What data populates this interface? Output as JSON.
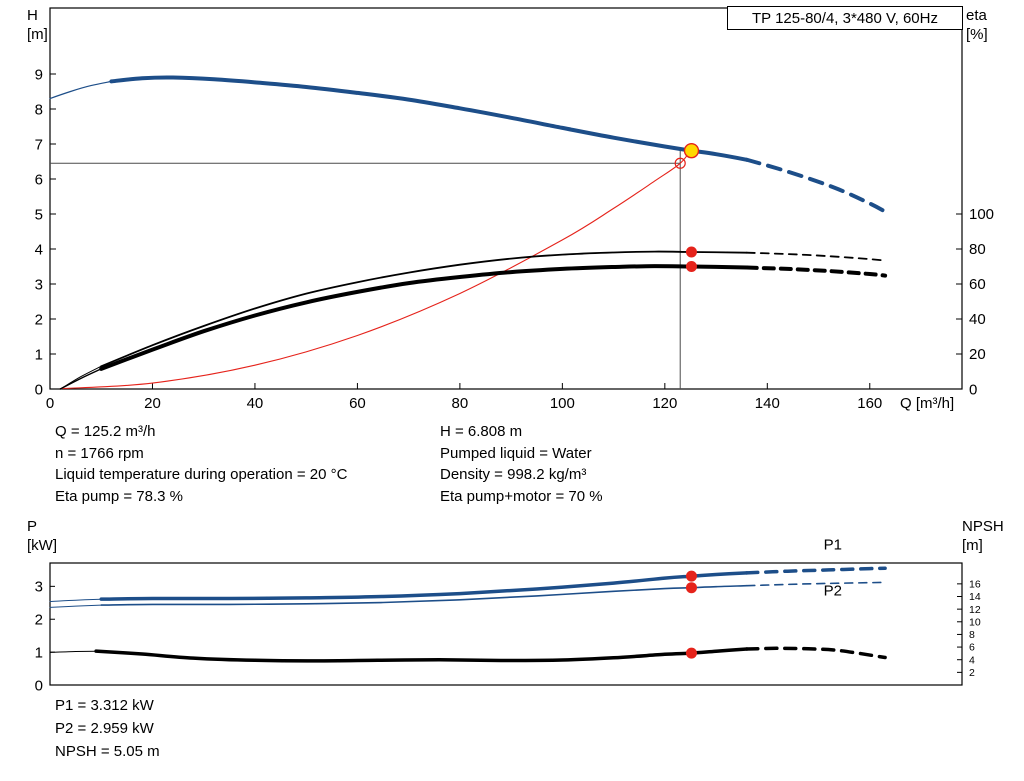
{
  "axis_corners": {
    "top_left": [
      "H",
      "[m]"
    ],
    "top_right": [
      "eta",
      "[%]"
    ],
    "bottom_left": [
      "P",
      "[kW]"
    ],
    "bottom_right": [
      "NPSH",
      "[m]"
    ]
  },
  "info": {
    "left": [
      "Q = 125.2 m³/h",
      "n = 1766 rpm",
      "Liquid temperature during operation = 20 °C",
      "Eta pump = 78.3 %"
    ],
    "right": [
      "H = 6.808 m",
      "Pumped liquid = Water",
      "Density = 998.2 kg/m³",
      "Eta pump+motor = 70 %"
    ]
  },
  "footer": [
    "P1 = 3.312 kW",
    "P2 = 2.959 kW",
    "NPSH = 5.05 m"
  ],
  "colors": {
    "curve_blue": "#1d4e89",
    "curve_black": "#000000",
    "marker_red": "#e5231b",
    "duty_yellow": "#ffd800",
    "guide_gray": "#4a4a4a"
  },
  "chart_data": [
    {
      "type": "line",
      "title": "TP 125-80/4, 3*480 V, 60Hz",
      "xlabel": "Q [m³/h]",
      "x_range": [
        0,
        178
      ],
      "x_ticks": [
        0,
        20,
        40,
        60,
        80,
        100,
        120,
        140,
        160
      ],
      "left_axis": {
        "label": "H [m]",
        "range": [
          0,
          10.886
        ],
        "ticks": [
          0,
          1,
          2,
          3,
          4,
          5,
          6,
          7,
          8,
          9
        ]
      },
      "right_axis": {
        "label": "eta [%]",
        "range": [
          0,
          217.7
        ],
        "ticks": [
          0,
          20,
          40,
          60,
          80,
          100
        ]
      },
      "guide_color": "#4a4a4a",
      "guides": [
        {
          "dir": "v",
          "at": 123,
          "from": 0,
          "to": 6.86
        },
        {
          "dir": "h",
          "at": 6.45,
          "from": 0,
          "to": 123
        }
      ],
      "series": [
        {
          "name": "system-curve",
          "axis": "left",
          "color": "#e5231b",
          "width": 1.1,
          "points": [
            [
              2,
              0.01
            ],
            [
              20,
              0.17
            ],
            [
              40,
              0.68
            ],
            [
              60,
              1.53
            ],
            [
              80,
              2.73
            ],
            [
              100,
              4.26
            ],
            [
              110,
              5.16
            ],
            [
              118,
              5.94
            ],
            [
              123,
              6.45
            ],
            [
              125.2,
              6.86
            ]
          ]
        },
        {
          "name": "eta-pump-curve-lead",
          "axis": "right",
          "color": "#000000",
          "width": 1,
          "points": [
            [
              2,
              0
            ],
            [
              6,
              7
            ],
            [
              10,
              13
            ]
          ]
        },
        {
          "name": "eta-pump-curve",
          "axis": "right",
          "color": "#000000",
          "width": 1.8,
          "points": [
            [
              10,
              13
            ],
            [
              20,
              25
            ],
            [
              30,
              36
            ],
            [
              40,
              46
            ],
            [
              50,
              54.5
            ],
            [
              60,
              61
            ],
            [
              70,
              66.5
            ],
            [
              80,
              71
            ],
            [
              90,
              74.5
            ],
            [
              100,
              76.8
            ],
            [
              110,
              78
            ],
            [
              118,
              78.5
            ],
            [
              125.2,
              78.3
            ],
            [
              136,
              77.9
            ]
          ]
        },
        {
          "name": "eta-pump-curve-extrapolated",
          "axis": "right",
          "color": "#000000",
          "width": 1.8,
          "dash": "8,6",
          "points": [
            [
              136,
              77.9
            ],
            [
              144,
              77.1
            ],
            [
              152,
              75.9
            ],
            [
              160,
              74.2
            ],
            [
              163,
              73.4
            ]
          ]
        },
        {
          "name": "eta-pump-motor-curve-lead",
          "axis": "right",
          "color": "#000000",
          "width": 1.4,
          "points": [
            [
              2,
              0
            ],
            [
              6,
              6
            ],
            [
              10,
              11.5
            ]
          ]
        },
        {
          "name": "eta-pump-motor-curve",
          "axis": "right",
          "color": "#000000",
          "width": 4,
          "points": [
            [
              10,
              11.5
            ],
            [
              20,
              22.5
            ],
            [
              30,
              33
            ],
            [
              40,
              42
            ],
            [
              50,
              49.5
            ],
            [
              60,
              55.5
            ],
            [
              70,
              60.5
            ],
            [
              80,
              64
            ],
            [
              90,
              66.8
            ],
            [
              100,
              68.6
            ],
            [
              110,
              69.7
            ],
            [
              118,
              70.2
            ],
            [
              125.2,
              70
            ],
            [
              136,
              69.4
            ]
          ]
        },
        {
          "name": "eta-pump-motor-curve-extrapolated",
          "axis": "right",
          "color": "#000000",
          "width": 4,
          "dash": "10,7",
          "points": [
            [
              136,
              69.4
            ],
            [
              144,
              68.6
            ],
            [
              152,
              67.4
            ],
            [
              160,
              65.7
            ],
            [
              163,
              64.8
            ]
          ]
        },
        {
          "name": "head-curve-lead",
          "axis": "left",
          "color": "#1d4e89",
          "width": 1.2,
          "points": [
            [
              0,
              8.3
            ],
            [
              4,
              8.5
            ],
            [
              8,
              8.67
            ],
            [
              12,
              8.79
            ]
          ]
        },
        {
          "name": "head-curve",
          "axis": "left",
          "color": "#1d4e89",
          "width": 4,
          "points": [
            [
              12,
              8.79
            ],
            [
              18,
              8.88
            ],
            [
              24,
              8.9
            ],
            [
              32,
              8.85
            ],
            [
              40,
              8.76
            ],
            [
              50,
              8.63
            ],
            [
              60,
              8.46
            ],
            [
              70,
              8.27
            ],
            [
              80,
              8.02
            ],
            [
              90,
              7.75
            ],
            [
              100,
              7.46
            ],
            [
              110,
              7.18
            ],
            [
              120,
              6.93
            ],
            [
              125.2,
              6.81
            ],
            [
              130,
              6.71
            ],
            [
              136,
              6.55
            ]
          ]
        },
        {
          "name": "head-curve-extrapolated",
          "axis": "left",
          "color": "#1d4e89",
          "width": 4,
          "dash": "13,9",
          "points": [
            [
              136,
              6.55
            ],
            [
              142,
              6.3
            ],
            [
              148,
              6.02
            ],
            [
              154,
              5.7
            ],
            [
              160,
              5.3
            ],
            [
              163,
              5.07
            ]
          ]
        }
      ],
      "markers": [
        {
          "name": "system-intersection-point",
          "axis": "left",
          "x": 123,
          "y": 6.45,
          "r": 5,
          "fill": "none",
          "stroke": "#e5231b",
          "stroke_width": 1.2
        },
        {
          "name": "eta-pump-duty-point",
          "axis": "right",
          "x": 125.2,
          "y": 78.3,
          "r": 5.5,
          "fill": "#e5231b"
        },
        {
          "name": "eta-pump-motor-duty-point",
          "axis": "right",
          "x": 125.2,
          "y": 70,
          "r": 5.5,
          "fill": "#e5231b"
        },
        {
          "name": "duty-point",
          "axis": "left",
          "x": 125.2,
          "y": 6.81,
          "r": 7,
          "fill": "#ffd800",
          "stroke": "#e5231b",
          "stroke_width": 1.4
        }
      ],
      "labels": []
    },
    {
      "type": "line",
      "title": "",
      "xlabel": "",
      "x_range": [
        0,
        178
      ],
      "x_ticks": [],
      "left_axis": {
        "label": "P [kW]",
        "range": [
          0,
          3.71
        ],
        "ticks": [
          0,
          1,
          2,
          3
        ]
      },
      "right_axis": {
        "label": "NPSH [m]",
        "range": [
          0,
          19.3
        ],
        "ticks": [
          2,
          4,
          6,
          8,
          10,
          12,
          14,
          16
        ]
      },
      "guide_color": "#4a4a4a",
      "guides": [],
      "series": [
        {
          "name": "npsh-curve-lead",
          "axis": "right",
          "color": "#000000",
          "width": 1,
          "points": [
            [
              0,
              5.15
            ],
            [
              5,
              5.3
            ],
            [
              9,
              5.35
            ]
          ]
        },
        {
          "name": "npsh-curve",
          "axis": "right",
          "color": "#000000",
          "width": 3.5,
          "points": [
            [
              9,
              5.35
            ],
            [
              18,
              4.9
            ],
            [
              28,
              4.25
            ],
            [
              40,
              3.9
            ],
            [
              52,
              3.82
            ],
            [
              64,
              3.9
            ],
            [
              76,
              3.98
            ],
            [
              88,
              3.88
            ],
            [
              100,
              3.95
            ],
            [
              110,
              4.3
            ],
            [
              120,
              4.85
            ],
            [
              125.2,
              5.05
            ],
            [
              130,
              5.35
            ],
            [
              136,
              5.7
            ]
          ]
        },
        {
          "name": "npsh-curve-extrapolated",
          "axis": "right",
          "color": "#000000",
          "width": 3.5,
          "dash": "11,8",
          "points": [
            [
              136,
              5.7
            ],
            [
              142,
              5.8
            ],
            [
              148,
              5.72
            ],
            [
              154,
              5.45
            ],
            [
              163,
              4.35
            ]
          ]
        },
        {
          "name": "p2-curve-lead",
          "axis": "left",
          "color": "#1d4e89",
          "width": 1,
          "points": [
            [
              0,
              2.36
            ],
            [
              5,
              2.4
            ],
            [
              10,
              2.43
            ]
          ]
        },
        {
          "name": "p2-curve",
          "axis": "left",
          "color": "#1d4e89",
          "width": 1.6,
          "points": [
            [
              10,
              2.43
            ],
            [
              20,
              2.45
            ],
            [
              35,
              2.45
            ],
            [
              50,
              2.47
            ],
            [
              65,
              2.51
            ],
            [
              80,
              2.59
            ],
            [
              95,
              2.71
            ],
            [
              110,
              2.85
            ],
            [
              120,
              2.93
            ],
            [
              125.2,
              2.96
            ],
            [
              130,
              2.99
            ],
            [
              136,
              3.02
            ]
          ]
        },
        {
          "name": "p2-curve-extrapolated",
          "axis": "left",
          "color": "#1d4e89",
          "width": 1.6,
          "dash": "8,6",
          "points": [
            [
              136,
              3.02
            ],
            [
              144,
              3.06
            ],
            [
              152,
              3.09
            ],
            [
              163,
              3.12
            ]
          ]
        },
        {
          "name": "p1-curve-lead",
          "axis": "left",
          "color": "#1d4e89",
          "width": 1,
          "points": [
            [
              0,
              2.54
            ],
            [
              5,
              2.58
            ],
            [
              10,
              2.61
            ]
          ]
        },
        {
          "name": "p1-curve",
          "axis": "left",
          "color": "#1d4e89",
          "width": 3.5,
          "points": [
            [
              10,
              2.61
            ],
            [
              20,
              2.63
            ],
            [
              35,
              2.63
            ],
            [
              50,
              2.65
            ],
            [
              65,
              2.69
            ],
            [
              80,
              2.78
            ],
            [
              95,
              2.92
            ],
            [
              110,
              3.1
            ],
            [
              120,
              3.25
            ],
            [
              125.2,
              3.31
            ],
            [
              130,
              3.36
            ],
            [
              136,
              3.41
            ]
          ]
        },
        {
          "name": "p1-curve-extrapolated",
          "axis": "left",
          "color": "#1d4e89",
          "width": 3.5,
          "dash": "11,8",
          "points": [
            [
              136,
              3.41
            ],
            [
              144,
              3.46
            ],
            [
              152,
              3.5
            ],
            [
              160,
              3.54
            ],
            [
              163,
              3.55
            ]
          ]
        }
      ],
      "markers": [
        {
          "name": "p1-duty-point",
          "axis": "left",
          "x": 125.2,
          "y": 3.312,
          "r": 5.5,
          "fill": "#e5231b"
        },
        {
          "name": "p2-duty-point",
          "axis": "left",
          "x": 125.2,
          "y": 2.959,
          "r": 5.5,
          "fill": "#e5231b"
        },
        {
          "name": "npsh-duty-point",
          "axis": "right",
          "x": 125.2,
          "y": 5.05,
          "r": 5.5,
          "fill": "#e5231b"
        }
      ],
      "labels": [
        {
          "name": "p1-curve-label",
          "text": "P1",
          "x": 151,
          "y": 4.12,
          "axis": "left",
          "color": "#1d4e89"
        },
        {
          "name": "p2-curve-label",
          "text": "P2",
          "x": 151,
          "y": 2.72,
          "axis": "left",
          "color": "#1d4e89"
        }
      ]
    }
  ]
}
